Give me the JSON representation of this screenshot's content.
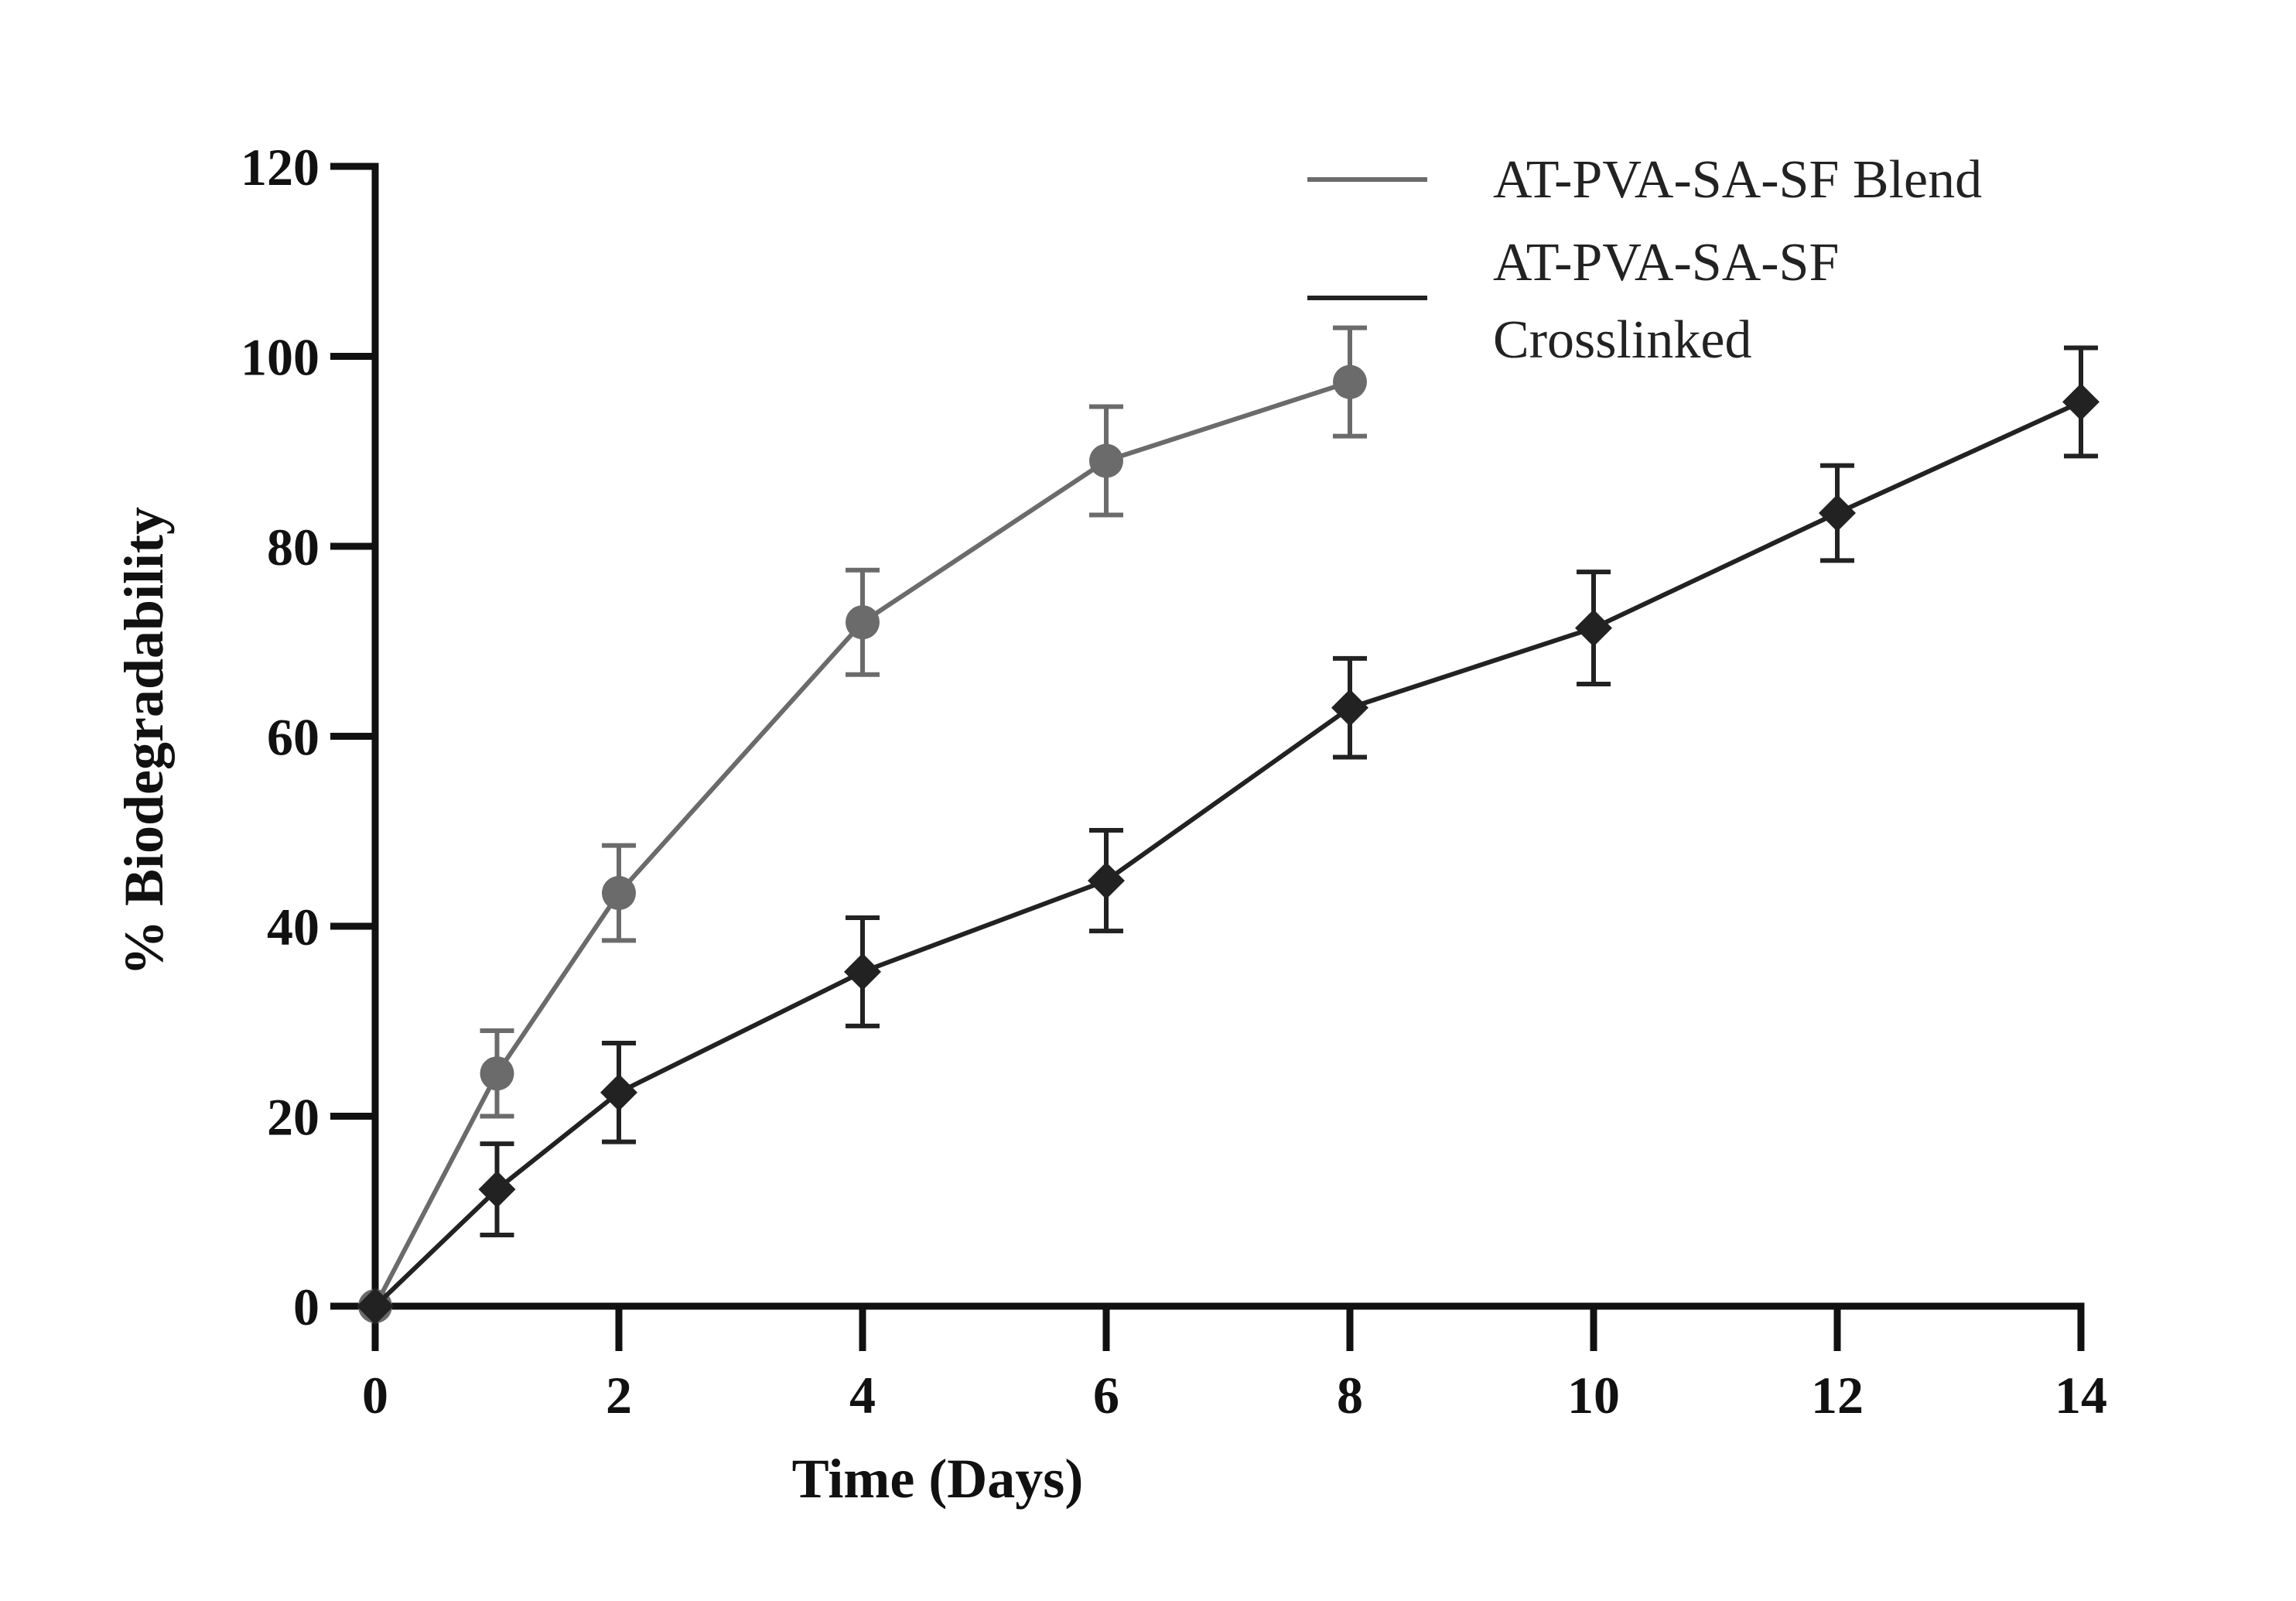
{
  "chart_data": {
    "type": "line",
    "xlabel": "Time (Days)",
    "ylabel": "% Biodegradability",
    "xlim": [
      0,
      14
    ],
    "ylim": [
      0,
      120
    ],
    "xticks": [
      0,
      2,
      4,
      6,
      8,
      10,
      12,
      14
    ],
    "yticks": [
      0,
      20,
      40,
      60,
      80,
      100,
      120
    ],
    "grid": false,
    "legend_position": "top-right",
    "series": [
      {
        "name": "AT-PVA-SA-SF Blend",
        "legend_lines": [
          "AT-PVA-SA-SF Blend"
        ],
        "color": "#6b6b6b",
        "marker": "circle",
        "x": [
          0,
          1,
          2,
          4,
          6,
          8
        ],
        "y": [
          0,
          24.5,
          43.5,
          72,
          89,
          97.3
        ],
        "err": [
          0,
          4.5,
          5,
          5.5,
          5.7,
          5.7
        ]
      },
      {
        "name": "AT-PVA-SA-SF Crosslinked",
        "legend_lines": [
          "AT-PVA-SA-SF",
          "Crosslinked"
        ],
        "color": "#222222",
        "marker": "diamond",
        "x": [
          0,
          1,
          2,
          4,
          6,
          8,
          10,
          12,
          14
        ],
        "y": [
          0,
          12.3,
          22.5,
          35.2,
          44.8,
          63,
          71.4,
          83.5,
          95.2
        ],
        "err": [
          0,
          4.8,
          5.2,
          5.7,
          5.3,
          5.2,
          5.9,
          5,
          5.7
        ]
      }
    ]
  }
}
